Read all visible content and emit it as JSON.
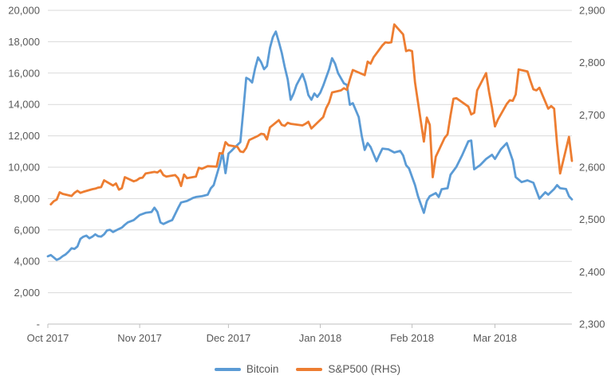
{
  "chart_data": {
    "type": "line",
    "title": "",
    "grid": "horizontal",
    "legend_position": "bottom-center",
    "colors": {
      "bitcoin": "#5B9BD5",
      "sp500": "#ED7D31",
      "gridline": "#D9D9D9",
      "axis_line": "#BFBFBF",
      "tick_text": "#595959"
    },
    "x_axis": {
      "start_label_date": "Oct 2017",
      "domain_days": [
        0,
        177
      ],
      "months": [
        {
          "day": 0,
          "label": "Oct 2017"
        },
        {
          "day": 31,
          "label": "Nov 2017"
        },
        {
          "day": 61,
          "label": "Dec 2017"
        },
        {
          "day": 92,
          "label": "Jan 2018"
        },
        {
          "day": 123,
          "label": "Feb 2018"
        },
        {
          "day": 151,
          "label": "Mar 2018"
        }
      ]
    },
    "y_left": {
      "min": 0,
      "max": 20000,
      "step": 2000,
      "tick_values": [
        0,
        2000,
        4000,
        6000,
        8000,
        10000,
        12000,
        14000,
        16000,
        18000,
        20000
      ],
      "tick_labels": [
        "-",
        "2,000",
        "4,000",
        "6,000",
        "8,000",
        "10,000",
        "12,000",
        "14,000",
        "16,000",
        "18,000",
        "20,000"
      ]
    },
    "y_right": {
      "min": 2300,
      "max": 2900,
      "step": 100,
      "tick_values": [
        2300,
        2400,
        2500,
        2600,
        2700,
        2800,
        2900
      ],
      "tick_labels": [
        "2,300",
        "2,400",
        "2,500",
        "2,600",
        "2,700",
        "2,800",
        "2,900"
      ]
    },
    "series": [
      {
        "name": "Bitcoin",
        "axis": "left",
        "color": "#5B9BD5",
        "points": [
          [
            0,
            4320
          ],
          [
            1,
            4400
          ],
          [
            2,
            4250
          ],
          [
            3,
            4090
          ],
          [
            4,
            4180
          ],
          [
            5,
            4330
          ],
          [
            6,
            4440
          ],
          [
            7,
            4620
          ],
          [
            8,
            4830
          ],
          [
            9,
            4790
          ],
          [
            10,
            4950
          ],
          [
            11,
            5430
          ],
          [
            12,
            5570
          ],
          [
            13,
            5640
          ],
          [
            14,
            5470
          ],
          [
            15,
            5570
          ],
          [
            16,
            5720
          ],
          [
            17,
            5600
          ],
          [
            18,
            5580
          ],
          [
            19,
            5720
          ],
          [
            20,
            5970
          ],
          [
            21,
            6010
          ],
          [
            22,
            5870
          ],
          [
            23,
            5970
          ],
          [
            25,
            6150
          ],
          [
            26,
            6330
          ],
          [
            27,
            6480
          ],
          [
            29,
            6630
          ],
          [
            31,
            6950
          ],
          [
            33,
            7090
          ],
          [
            35,
            7140
          ],
          [
            36,
            7420
          ],
          [
            37,
            7150
          ],
          [
            38,
            6480
          ],
          [
            39,
            6380
          ],
          [
            41,
            6560
          ],
          [
            42,
            6630
          ],
          [
            44,
            7400
          ],
          [
            45,
            7750
          ],
          [
            47,
            7850
          ],
          [
            49,
            8040
          ],
          [
            50,
            8100
          ],
          [
            52,
            8150
          ],
          [
            54,
            8250
          ],
          [
            55,
            8650
          ],
          [
            56,
            8860
          ],
          [
            58,
            10130
          ],
          [
            59,
            10940
          ],
          [
            60,
            9620
          ],
          [
            61,
            10870
          ],
          [
            62,
            11040
          ],
          [
            63,
            11240
          ],
          [
            65,
            11600
          ],
          [
            66,
            13600
          ],
          [
            67,
            15700
          ],
          [
            68,
            15600
          ],
          [
            69,
            15400
          ],
          [
            70,
            16300
          ],
          [
            71,
            17000
          ],
          [
            72,
            16700
          ],
          [
            73,
            16250
          ],
          [
            74,
            16450
          ],
          [
            75,
            17600
          ],
          [
            76,
            18300
          ],
          [
            77,
            18650
          ],
          [
            78,
            18000
          ],
          [
            79,
            17300
          ],
          [
            80,
            16400
          ],
          [
            81,
            15600
          ],
          [
            82,
            14300
          ],
          [
            83,
            14700
          ],
          [
            84,
            15250
          ],
          [
            86,
            15950
          ],
          [
            87,
            15400
          ],
          [
            88,
            14600
          ],
          [
            89,
            14300
          ],
          [
            90,
            14700
          ],
          [
            91,
            14480
          ],
          [
            92,
            14750
          ],
          [
            93,
            15200
          ],
          [
            95,
            16250
          ],
          [
            96,
            16950
          ],
          [
            97,
            16600
          ],
          [
            98,
            16000
          ],
          [
            100,
            15340
          ],
          [
            101,
            15250
          ],
          [
            102,
            13980
          ],
          [
            103,
            14080
          ],
          [
            105,
            13200
          ],
          [
            106,
            12000
          ],
          [
            107,
            11100
          ],
          [
            108,
            11540
          ],
          [
            109,
            11290
          ],
          [
            111,
            10380
          ],
          [
            112,
            10800
          ],
          [
            113,
            11190
          ],
          [
            115,
            11140
          ],
          [
            117,
            10940
          ],
          [
            119,
            11040
          ],
          [
            120,
            10750
          ],
          [
            121,
            10130
          ],
          [
            122,
            9920
          ],
          [
            124,
            8860
          ],
          [
            125,
            8150
          ],
          [
            127,
            7090
          ],
          [
            128,
            7850
          ],
          [
            129,
            8150
          ],
          [
            131,
            8350
          ],
          [
            132,
            8100
          ],
          [
            133,
            8600
          ],
          [
            135,
            8660
          ],
          [
            136,
            9520
          ],
          [
            138,
            10030
          ],
          [
            140,
            10800
          ],
          [
            142,
            11650
          ],
          [
            143,
            11700
          ],
          [
            144,
            9870
          ],
          [
            146,
            10130
          ],
          [
            148,
            10530
          ],
          [
            150,
            10790
          ],
          [
            151,
            10530
          ],
          [
            153,
            11140
          ],
          [
            155,
            11540
          ],
          [
            157,
            10430
          ],
          [
            158,
            9370
          ],
          [
            160,
            9050
          ],
          [
            162,
            9160
          ],
          [
            164,
            9010
          ],
          [
            166,
            8000
          ],
          [
            168,
            8400
          ],
          [
            169,
            8250
          ],
          [
            171,
            8610
          ],
          [
            172,
            8860
          ],
          [
            173,
            8660
          ],
          [
            175,
            8610
          ],
          [
            176,
            8150
          ],
          [
            177,
            7950
          ]
        ]
      },
      {
        "name": "S&P500 (RHS)",
        "axis": "right",
        "color": "#ED7D31",
        "points": [
          [
            1,
            2529
          ],
          [
            2,
            2535
          ],
          [
            3,
            2538
          ],
          [
            4,
            2552
          ],
          [
            5,
            2549
          ],
          [
            8,
            2545
          ],
          [
            9,
            2551
          ],
          [
            10,
            2555
          ],
          [
            11,
            2551
          ],
          [
            12,
            2553
          ],
          [
            15,
            2558
          ],
          [
            16,
            2559
          ],
          [
            17,
            2561
          ],
          [
            18,
            2562
          ],
          [
            19,
            2575
          ],
          [
            22,
            2565
          ],
          [
            23,
            2569
          ],
          [
            24,
            2557
          ],
          [
            25,
            2560
          ],
          [
            26,
            2581
          ],
          [
            29,
            2573
          ],
          [
            30,
            2575
          ],
          [
            31,
            2579
          ],
          [
            32,
            2580
          ],
          [
            33,
            2588
          ],
          [
            36,
            2591
          ],
          [
            37,
            2590
          ],
          [
            38,
            2594
          ],
          [
            39,
            2585
          ],
          [
            40,
            2582
          ],
          [
            43,
            2585
          ],
          [
            44,
            2579
          ],
          [
            45,
            2564
          ],
          [
            46,
            2586
          ],
          [
            47,
            2579
          ],
          [
            50,
            2582
          ],
          [
            51,
            2599
          ],
          [
            52,
            2597
          ],
          [
            54,
            2602
          ],
          [
            57,
            2601
          ],
          [
            58,
            2627
          ],
          [
            59,
            2626
          ],
          [
            60,
            2648
          ],
          [
            61,
            2642
          ],
          [
            64,
            2639
          ],
          [
            65,
            2630
          ],
          [
            66,
            2629
          ],
          [
            67,
            2637
          ],
          [
            68,
            2652
          ],
          [
            71,
            2660
          ],
          [
            72,
            2664
          ],
          [
            73,
            2663
          ],
          [
            74,
            2653
          ],
          [
            75,
            2676
          ],
          [
            78,
            2690
          ],
          [
            79,
            2681
          ],
          [
            80,
            2679
          ],
          [
            81,
            2685
          ],
          [
            82,
            2683
          ],
          [
            86,
            2680
          ],
          [
            87,
            2683
          ],
          [
            88,
            2687
          ],
          [
            89,
            2674
          ],
          [
            93,
            2696
          ],
          [
            94,
            2713
          ],
          [
            95,
            2724
          ],
          [
            96,
            2743
          ],
          [
            99,
            2747
          ],
          [
            100,
            2751
          ],
          [
            101,
            2748
          ],
          [
            102,
            2768
          ],
          [
            103,
            2786
          ],
          [
            107,
            2776
          ],
          [
            108,
            2802
          ],
          [
            109,
            2798
          ],
          [
            110,
            2810
          ],
          [
            113,
            2833
          ],
          [
            114,
            2839
          ],
          [
            115,
            2838
          ],
          [
            116,
            2839
          ],
          [
            117,
            2873
          ],
          [
            120,
            2854
          ],
          [
            121,
            2822
          ],
          [
            122,
            2824
          ],
          [
            123,
            2822
          ],
          [
            124,
            2762
          ],
          [
            127,
            2649
          ],
          [
            128,
            2695
          ],
          [
            129,
            2681
          ],
          [
            130,
            2581
          ],
          [
            131,
            2620
          ],
          [
            134,
            2656
          ],
          [
            135,
            2663
          ],
          [
            136,
            2699
          ],
          [
            137,
            2731
          ],
          [
            138,
            2732
          ],
          [
            142,
            2716
          ],
          [
            143,
            2701
          ],
          [
            144,
            2704
          ],
          [
            145,
            2747
          ],
          [
            148,
            2780
          ],
          [
            149,
            2744
          ],
          [
            150,
            2714
          ],
          [
            151,
            2678
          ],
          [
            152,
            2691
          ],
          [
            155,
            2721
          ],
          [
            156,
            2728
          ],
          [
            157,
            2727
          ],
          [
            158,
            2739
          ],
          [
            159,
            2787
          ],
          [
            162,
            2783
          ],
          [
            163,
            2765
          ],
          [
            164,
            2749
          ],
          [
            165,
            2747
          ],
          [
            166,
            2752
          ],
          [
            169,
            2712
          ],
          [
            170,
            2717
          ],
          [
            171,
            2712
          ],
          [
            172,
            2644
          ],
          [
            173,
            2588
          ],
          [
            176,
            2658
          ],
          [
            177,
            2612
          ]
        ]
      }
    ]
  },
  "legend": {
    "items": [
      {
        "label": "Bitcoin",
        "color": "#5B9BD5"
      },
      {
        "label": "S&P500 (RHS)",
        "color": "#ED7D31"
      }
    ]
  }
}
